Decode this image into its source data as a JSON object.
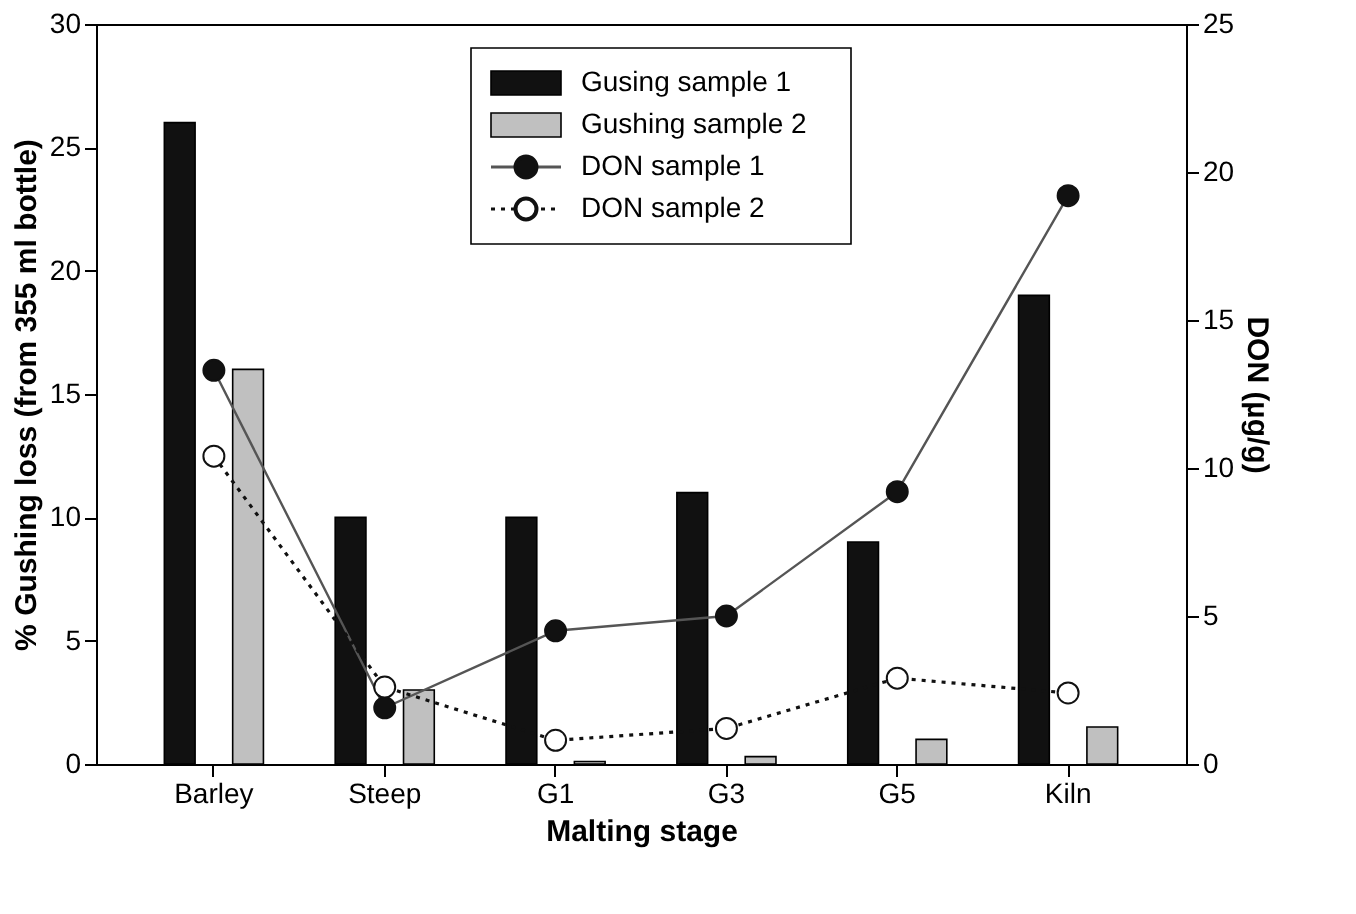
{
  "chart_data": {
    "type": "bar",
    "xlabel": "Malting stage",
    "ylabel": "% Gushing loss (from 355 ml bottle)",
    "y2label": "DON (µg/g)",
    "categories": [
      "Barley",
      "Steep",
      "G1",
      "G3",
      "G5",
      "Kiln"
    ],
    "series": [
      {
        "name": "Gusing sample 1",
        "color": "#111111",
        "values": [
          26,
          10,
          10,
          11,
          9,
          19
        ]
      },
      {
        "name": "Gushing sample 2",
        "color": "#c0c0c0",
        "values": [
          16,
          3,
          0.1,
          0.3,
          1,
          1.5
        ]
      },
      {
        "name": "DON sample 1",
        "type": "line",
        "axis": "y2",
        "color": "#111111",
        "line_style": "solid",
        "marker": "circle",
        "values": [
          13.3,
          1.9,
          4.5,
          5.0,
          9.2,
          19.2
        ]
      },
      {
        "name": "DON sample 2",
        "type": "line",
        "axis": "y2",
        "color": "#111111",
        "line_style": "dotted",
        "marker": "circle",
        "values": [
          10.4,
          2.6,
          0.8,
          1.2,
          2.9,
          2.4
        ]
      }
    ],
    "ylim": [
      0,
      30
    ],
    "yticks": [
      0,
      5,
      10,
      15,
      20,
      25,
      30
    ],
    "y2lim": [
      0,
      25
    ],
    "y2ticks": [
      0,
      5,
      10,
      15,
      20,
      25
    ],
    "grid": false,
    "legend": "top"
  }
}
